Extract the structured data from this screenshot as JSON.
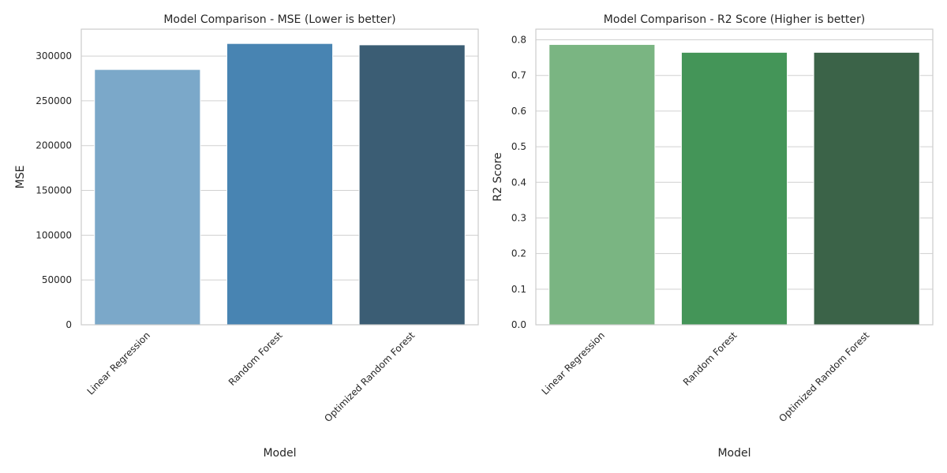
{
  "figure": {
    "background": "#ffffff",
    "axes_edge_color": "#cccccc",
    "grid_color": "#d0d0d0",
    "text_color": "#262626"
  },
  "chart_data": [
    {
      "type": "bar",
      "title": "Model Comparison - MSE (Lower is better)",
      "xlabel": "Model",
      "ylabel": "MSE",
      "categories": [
        "Linear Regression",
        "Random Forest",
        "Optimized Random Forest"
      ],
      "values": [
        285000,
        314000,
        312500
      ],
      "colors": [
        "#7ba8c9",
        "#4884b2",
        "#3b5d74"
      ],
      "ylim": [
        0,
        330000
      ],
      "yticks": [
        0,
        50000,
        100000,
        150000,
        200000,
        250000,
        300000
      ],
      "ytick_labels": [
        "0",
        "50000",
        "100000",
        "150000",
        "200000",
        "250000",
        "300000"
      ],
      "grid": "horizontal",
      "xtick_rotation_deg": 45
    },
    {
      "type": "bar",
      "title": "Model Comparison - R2 Score (Higher is better)",
      "xlabel": "Model",
      "ylabel": "R2 Score",
      "categories": [
        "Linear Regression",
        "Random Forest",
        "Optimized Random Forest"
      ],
      "values": [
        0.787,
        0.765,
        0.765
      ],
      "colors": [
        "#7ab582",
        "#449558",
        "#3b6348"
      ],
      "ylim": [
        0,
        0.83
      ],
      "yticks": [
        0,
        0.1,
        0.2,
        0.3,
        0.4,
        0.5,
        0.6,
        0.7,
        0.8
      ],
      "ytick_labels": [
        "0.0",
        "0.1",
        "0.2",
        "0.3",
        "0.4",
        "0.5",
        "0.6",
        "0.7",
        "0.8"
      ],
      "grid": "horizontal",
      "xtick_rotation_deg": 45
    }
  ]
}
